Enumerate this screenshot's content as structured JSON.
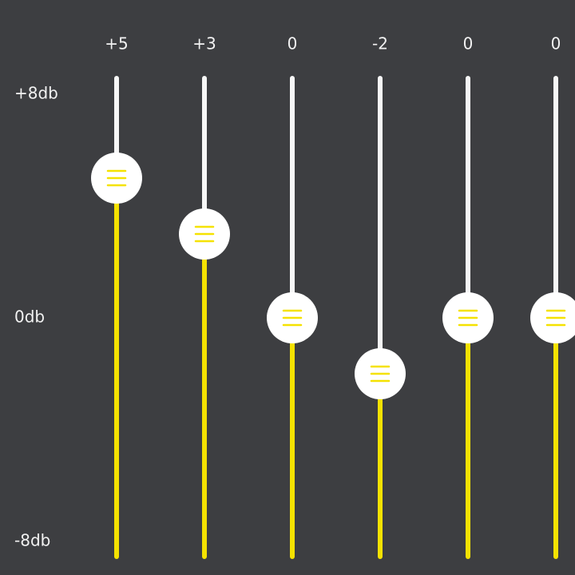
{
  "scale": {
    "labels": [
      {
        "value": 8,
        "label": "+8db"
      },
      {
        "value": 0,
        "label": "0db"
      },
      {
        "value": -8,
        "label": "-8db"
      }
    ]
  },
  "sliders": [
    {
      "value": 5,
      "label": "+5"
    },
    {
      "value": 3,
      "label": "+3"
    },
    {
      "value": 0,
      "label": "0"
    },
    {
      "value": -2,
      "label": "-2"
    },
    {
      "value": 0,
      "label": "0"
    },
    {
      "value": 0,
      "label": "0"
    }
  ]
}
